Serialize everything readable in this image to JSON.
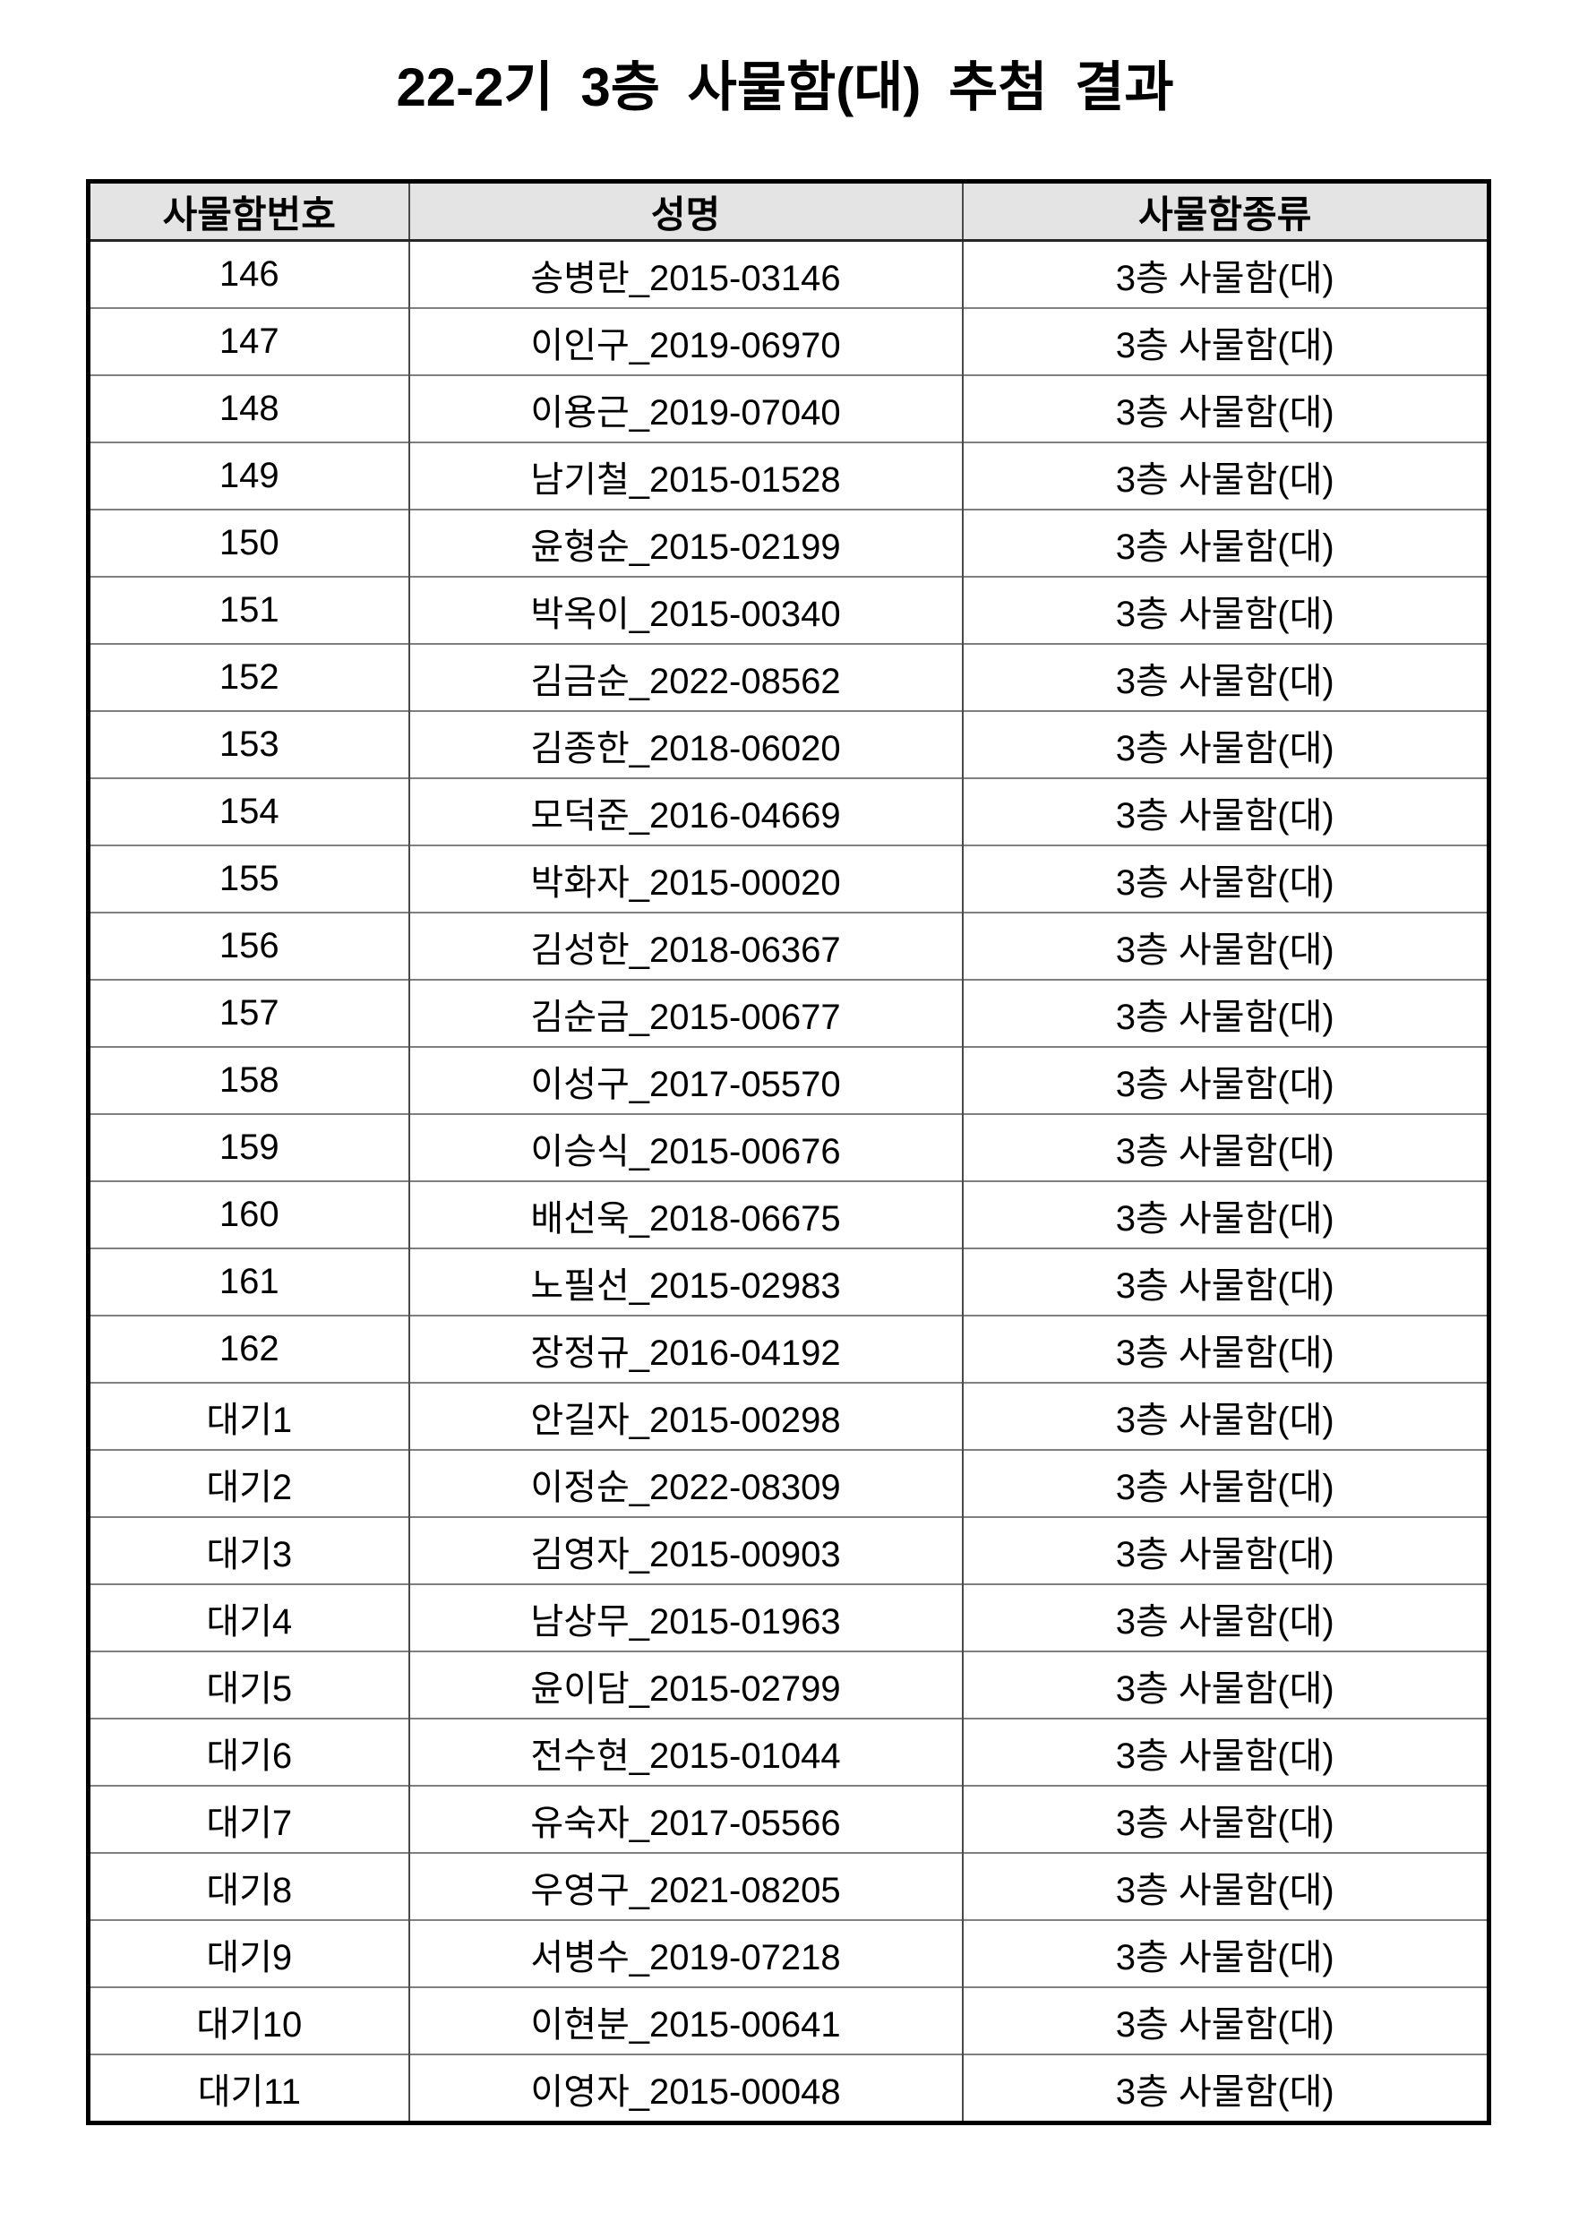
{
  "title": "22-2기 3층 사물함(대) 추첨 결과",
  "colors": {
    "header_bg": "#e4e4e4",
    "outer_border": "#000000",
    "grid_line": "#7f7f7f",
    "text": "#000000"
  },
  "table": {
    "columns": [
      "사물함번호",
      "성명",
      "사물함종류"
    ],
    "rows": [
      [
        "146",
        "송병란_2015-03146",
        "3층 사물함(대)"
      ],
      [
        "147",
        "이인구_2019-06970",
        "3층 사물함(대)"
      ],
      [
        "148",
        "이용근_2019-07040",
        "3층 사물함(대)"
      ],
      [
        "149",
        "남기철_2015-01528",
        "3층 사물함(대)"
      ],
      [
        "150",
        "윤형순_2015-02199",
        "3층 사물함(대)"
      ],
      [
        "151",
        "박옥이_2015-00340",
        "3층 사물함(대)"
      ],
      [
        "152",
        "김금순_2022-08562",
        "3층 사물함(대)"
      ],
      [
        "153",
        "김종한_2018-06020",
        "3층 사물함(대)"
      ],
      [
        "154",
        "모덕준_2016-04669",
        "3층 사물함(대)"
      ],
      [
        "155",
        "박화자_2015-00020",
        "3층 사물함(대)"
      ],
      [
        "156",
        "김성한_2018-06367",
        "3층 사물함(대)"
      ],
      [
        "157",
        "김순금_2015-00677",
        "3층 사물함(대)"
      ],
      [
        "158",
        "이성구_2017-05570",
        "3층 사물함(대)"
      ],
      [
        "159",
        "이승식_2015-00676",
        "3층 사물함(대)"
      ],
      [
        "160",
        "배선욱_2018-06675",
        "3층 사물함(대)"
      ],
      [
        "161",
        "노필선_2015-02983",
        "3층 사물함(대)"
      ],
      [
        "162",
        "장정규_2016-04192",
        "3층 사물함(대)"
      ],
      [
        "대기1",
        "안길자_2015-00298",
        "3층 사물함(대)"
      ],
      [
        "대기2",
        "이정순_2022-08309",
        "3층 사물함(대)"
      ],
      [
        "대기3",
        "김영자_2015-00903",
        "3층 사물함(대)"
      ],
      [
        "대기4",
        "남상무_2015-01963",
        "3층 사물함(대)"
      ],
      [
        "대기5",
        "윤이담_2015-02799",
        "3층 사물함(대)"
      ],
      [
        "대기6",
        "전수현_2015-01044",
        "3층 사물함(대)"
      ],
      [
        "대기7",
        "유숙자_2017-05566",
        "3층 사물함(대)"
      ],
      [
        "대기8",
        "우영구_2021-08205",
        "3층 사물함(대)"
      ],
      [
        "대기9",
        "서병수_2019-07218",
        "3층 사물함(대)"
      ],
      [
        "대기10",
        "이현분_2015-00641",
        "3층 사물함(대)"
      ],
      [
        "대기11",
        "이영자_2015-00048",
        "3층 사물함(대)"
      ]
    ]
  }
}
